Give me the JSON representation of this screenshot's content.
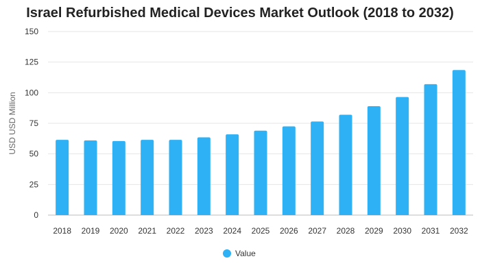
{
  "chart_data": {
    "type": "bar",
    "title": "Israel Refurbished Medical Devices Market Outlook (2018 to 2032)",
    "xlabel": "",
    "ylabel": "USD USD Million",
    "categories": [
      "2018",
      "2019",
      "2020",
      "2021",
      "2022",
      "2023",
      "2024",
      "2025",
      "2026",
      "2027",
      "2028",
      "2029",
      "2030",
      "2031",
      "2032"
    ],
    "series": [
      {
        "name": "Value",
        "color": "#2EB1F5",
        "values": [
          61.5,
          61.0,
          60.5,
          61.5,
          61.5,
          63.5,
          66.0,
          69.0,
          72.5,
          76.5,
          82.0,
          89.0,
          96.5,
          107.0,
          118.5
        ]
      }
    ],
    "ylim": [
      0,
      150
    ],
    "yticks": [
      0,
      25,
      50,
      75,
      100,
      125,
      150
    ],
    "grid": true,
    "legend": "bottom-center"
  }
}
